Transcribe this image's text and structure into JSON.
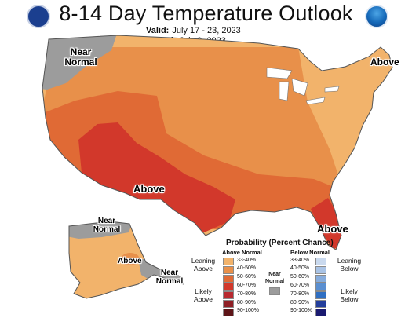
{
  "header": {
    "title": "8-14 Day Temperature Outlook",
    "valid_label": "Valid:",
    "valid_dates": "July 17 - 23, 2023",
    "issued_label": "Issued:",
    "issued_date": "July 9, 2023"
  },
  "logos": {
    "left": "department-of-commerce-seal",
    "right": "noaa-logo"
  },
  "map_labels": {
    "near_normal_nw": "Near Normal",
    "above_ne": "Above",
    "above_sw": "Above",
    "above_fl": "Above",
    "near_normal_ak_n": "Near Normal",
    "above_ak": "Above",
    "near_normal_ak_sw": "Near Normal"
  },
  "legend": {
    "title": "Probability (Percent Chance)",
    "above_header": "Above Normal",
    "below_header": "Below Normal",
    "near_header": "Near Normal",
    "leaning_above": "Leaning Above",
    "likely_above": "Likely Above",
    "leaning_below": "Leaning Below",
    "likely_below": "Likely Below",
    "above_bins": [
      {
        "label": "33-40%",
        "color": "#f2b36b"
      },
      {
        "label": "40-50%",
        "color": "#e8904a"
      },
      {
        "label": "50-60%",
        "color": "#e06a35"
      },
      {
        "label": "60-70%",
        "color": "#d2382b"
      },
      {
        "label": "70-80%",
        "color": "#b8292f"
      },
      {
        "label": "80-90%",
        "color": "#8f1f25"
      },
      {
        "label": "90-100%",
        "color": "#5e1518"
      }
    ],
    "below_bins": [
      {
        "label": "33-40%",
        "color": "#c9d9ee"
      },
      {
        "label": "40-50%",
        "color": "#a9c3e5"
      },
      {
        "label": "50-60%",
        "color": "#87acdc"
      },
      {
        "label": "60-70%",
        "color": "#5a8fd1"
      },
      {
        "label": "70-80%",
        "color": "#2f6fc2"
      },
      {
        "label": "80-90%",
        "color": "#243f9c"
      },
      {
        "label": "90-100%",
        "color": "#1a1a70"
      }
    ],
    "near_color": "#9c9c9c"
  },
  "colors": {
    "near_normal": "#9c9c9c",
    "p33": "#f2b36b",
    "p40": "#e8904a",
    "p50": "#e06a35",
    "p60": "#d2382b"
  }
}
